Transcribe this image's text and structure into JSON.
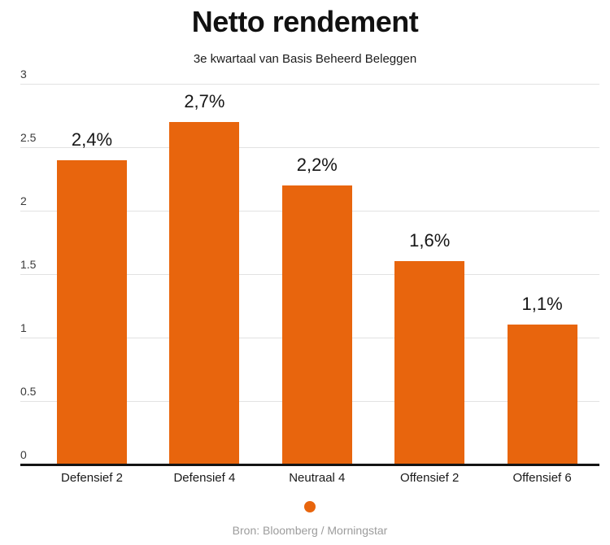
{
  "chart_data": {
    "type": "bar",
    "title": "Netto rendement",
    "subtitle": "3e kwartaal van Basis Beheerd Beleggen",
    "categories": [
      "Defensief 2",
      "Defensief 4",
      "Neutraal 4",
      "Offensief 2",
      "Offensief 6"
    ],
    "values": [
      2.4,
      2.7,
      2.2,
      1.6,
      1.1
    ],
    "value_labels": [
      "2,4%",
      "2,7%",
      "2,2%",
      "1,6%",
      "1,1%"
    ],
    "y_ticks": [
      {
        "value": 3,
        "label": "3"
      },
      {
        "value": 2.5,
        "label": "2.5"
      },
      {
        "value": 2,
        "label": "2"
      },
      {
        "value": 1.5,
        "label": "1.5"
      },
      {
        "value": 1,
        "label": "1"
      },
      {
        "value": 0.5,
        "label": "0.5"
      },
      {
        "value": 0,
        "label": "0"
      }
    ],
    "ylim": [
      0,
      3
    ],
    "grid": true,
    "legend_position": "bottom",
    "bar_color": "#E8650D",
    "legend_marker_color": "#E8650D",
    "source": "Bron: Bloomberg / Morningstar"
  }
}
